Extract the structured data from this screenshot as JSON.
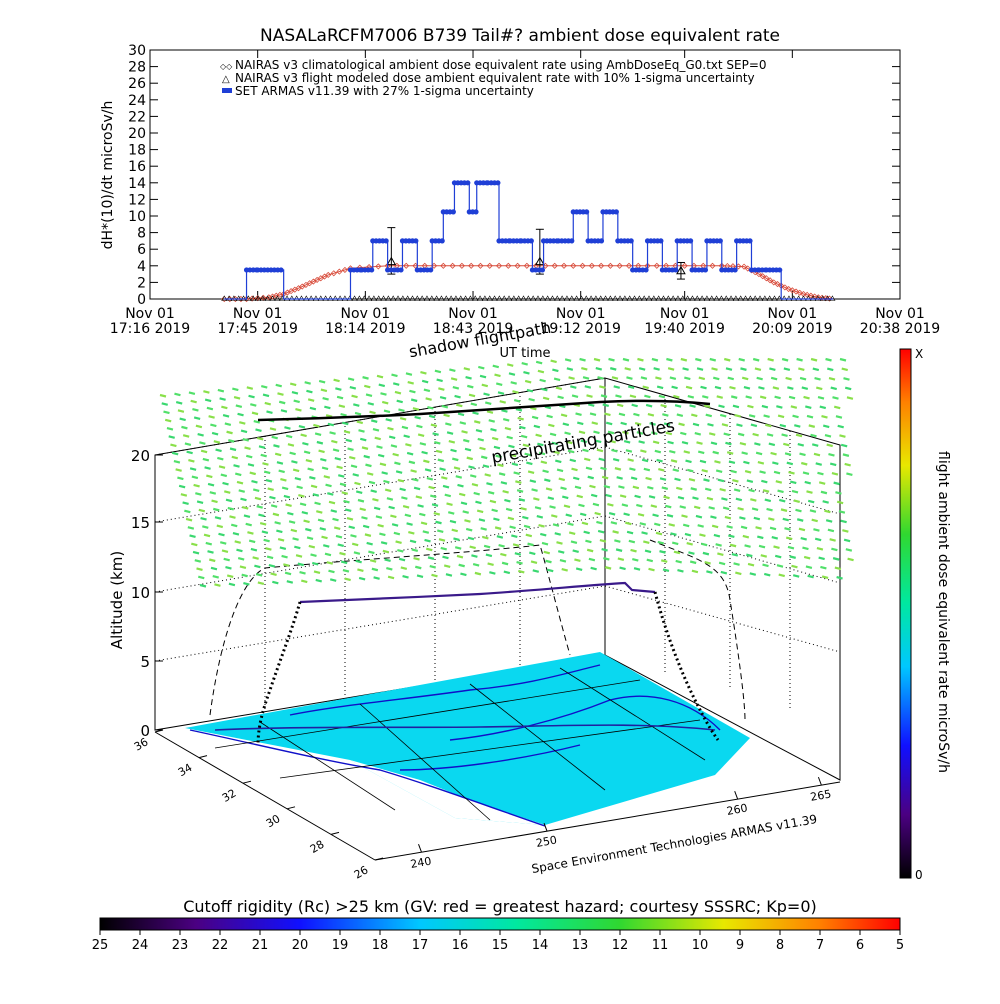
{
  "top_chart": {
    "title": "NASALaRCFM7006  B739 Tail#? ambient dose equivalent rate",
    "ylabel": "dH*(10)/dt microSv/h",
    "xlabel": "UT time",
    "legend": [
      "NAIRAS v3 climatological ambient dose equivalent rate using AmbDoseEq_G0.txt SEP=0",
      "NAIRAS v3 flight modeled dose ambient equivalent rate with 10% 1-sigma uncertainty",
      "SET ARMAS v11.39 with 27% 1-sigma uncertainty"
    ],
    "colors": {
      "climatological": "#d84b3a",
      "modeled": "#000000",
      "armas": "#1f3fd6"
    }
  },
  "bottom_chart": {
    "zlabel": "Altitude (km)",
    "labels": [
      "shadow flightpath",
      "precipitating particles"
    ],
    "credit": "Space Environment Technologies ARMAS v11.39",
    "colorbar_label": "flight ambient dose equivalent rate microSv/h",
    "colorbar_top": "X",
    "colorbar_bottom": "0",
    "z_ticks": [
      "0",
      "5",
      "10",
      "15",
      "20"
    ],
    "lat_ticks": [
      "36",
      "34",
      "32",
      "30",
      "28",
      "26"
    ],
    "lon_ticks": [
      "240",
      "250",
      "260",
      "265"
    ]
  },
  "cutoff_bar": {
    "title": "Cutoff rigidity (Rc) >25 km (GV: red = greatest hazard; courtesy SSSRC; Kp=0)",
    "ticks": [
      "25",
      "24",
      "23",
      "22",
      "21",
      "20",
      "19",
      "18",
      "17",
      "16",
      "15",
      "14",
      "13",
      "12",
      "11",
      "10",
      "9",
      "8",
      "7",
      "6",
      "5"
    ]
  },
  "chart_data": {
    "type": "scatter",
    "title": "NASALaRCFM7006  B739 Tail#? ambient dose equivalent rate",
    "xlabel": "UT time",
    "ylabel": "dH*(10)/dt microSv/h",
    "x_ticks": [
      [
        "Nov 01",
        "17:16 2019"
      ],
      [
        "Nov 01",
        "17:45 2019"
      ],
      [
        "Nov 01",
        "18:14 2019"
      ],
      [
        "Nov 01",
        "18:43 2019"
      ],
      [
        "Nov 01",
        "19:12 2019"
      ],
      [
        "Nov 01",
        "19:40 2019"
      ],
      [
        "Nov 01",
        "20:09 2019"
      ],
      [
        "Nov 01",
        "20:38 2019"
      ]
    ],
    "x_tick_minutes": [
      1036,
      1065,
      1094,
      1123,
      1152,
      1180,
      1209,
      1238
    ],
    "xlim_minutes": [
      1036,
      1238
    ],
    "ylim": [
      0,
      30
    ],
    "y_ticks": [
      0,
      2,
      4,
      6,
      8,
      10,
      12,
      14,
      16,
      18,
      20,
      22,
      24,
      26,
      28,
      30
    ],
    "series": [
      {
        "name": "NAIRAS v3 climatological ambient dose equivalent rate using AmbDoseEq_G0.txt SEP=0",
        "x": [
          1056,
          1062,
          1068,
          1072,
          1076,
          1080,
          1084,
          1090,
          1100,
          1110,
          1120,
          1130,
          1140,
          1150,
          1160,
          1170,
          1180,
          1190,
          1196,
          1200,
          1204,
          1208,
          1212,
          1216,
          1220
        ],
        "y": [
          0,
          0,
          0.2,
          0.6,
          1.3,
          2.1,
          2.9,
          3.7,
          4.0,
          4.0,
          4.0,
          4.0,
          4.0,
          4.0,
          4.0,
          4.0,
          4.0,
          4.0,
          3.9,
          3.0,
          2.0,
          1.2,
          0.6,
          0.2,
          0
        ]
      },
      {
        "name": "NAIRAS v3 flight modeled dose ambient equivalent rate with 10% 1-sigma uncertainty",
        "x": [
          1056,
          1060,
          1064,
          1068,
          1072,
          1076,
          1080,
          1084,
          1088,
          1092,
          1096,
          1100,
          1104,
          1108,
          1112,
          1116,
          1120,
          1124,
          1128,
          1132,
          1136,
          1140,
          1144,
          1148,
          1152,
          1156,
          1160,
          1164,
          1168,
          1172,
          1176,
          1180,
          1184,
          1188,
          1192,
          1196,
          1200,
          1204,
          1208,
          1212,
          1216,
          1220
        ],
        "y": [
          0,
          0,
          0,
          0,
          0,
          0,
          0,
          0,
          0,
          0,
          0,
          0,
          0,
          0,
          0,
          0,
          0,
          0,
          0,
          0,
          0,
          0,
          0,
          0,
          0,
          0,
          0,
          0,
          0,
          0,
          0,
          0,
          0,
          0,
          0,
          0,
          0,
          0,
          0,
          0,
          0,
          0
        ],
        "error_bars": [
          {
            "x": 1101,
            "y": 4.5,
            "low": 3.0,
            "high": 8.6
          },
          {
            "x": 1141,
            "y": 4.5,
            "low": 3.0,
            "high": 8.4
          },
          {
            "x": 1179,
            "y": 3.4,
            "low": 2.4,
            "high": 4.4
          }
        ]
      },
      {
        "name": "SET ARMAS v11.39 with 27% 1-sigma uncertainty",
        "x": [
          1056,
          1062,
          1065,
          1072,
          1080,
          1086,
          1090,
          1093,
          1096,
          1100,
          1104,
          1108,
          1112,
          1115,
          1118,
          1122,
          1124,
          1127,
          1130,
          1133,
          1136,
          1139,
          1142,
          1146,
          1150,
          1154,
          1158,
          1162,
          1166,
          1170,
          1174,
          1178,
          1182,
          1186,
          1190,
          1194,
          1198,
          1200,
          1202,
          1206,
          1212,
          1220
        ],
        "y": [
          0,
          3.5,
          3.5,
          0,
          0,
          0,
          3.5,
          3.5,
          7,
          3.5,
          7,
          3.5,
          7,
          10.5,
          14,
          10.5,
          14,
          14,
          7,
          7,
          7,
          3.5,
          7,
          7,
          10.5,
          7,
          10.5,
          7,
          3.5,
          7,
          3.5,
          7,
          3.5,
          7,
          3.5,
          7,
          3.5,
          3.5,
          3.5,
          0,
          0,
          0
        ]
      }
    ],
    "legend_position": "top-left"
  }
}
